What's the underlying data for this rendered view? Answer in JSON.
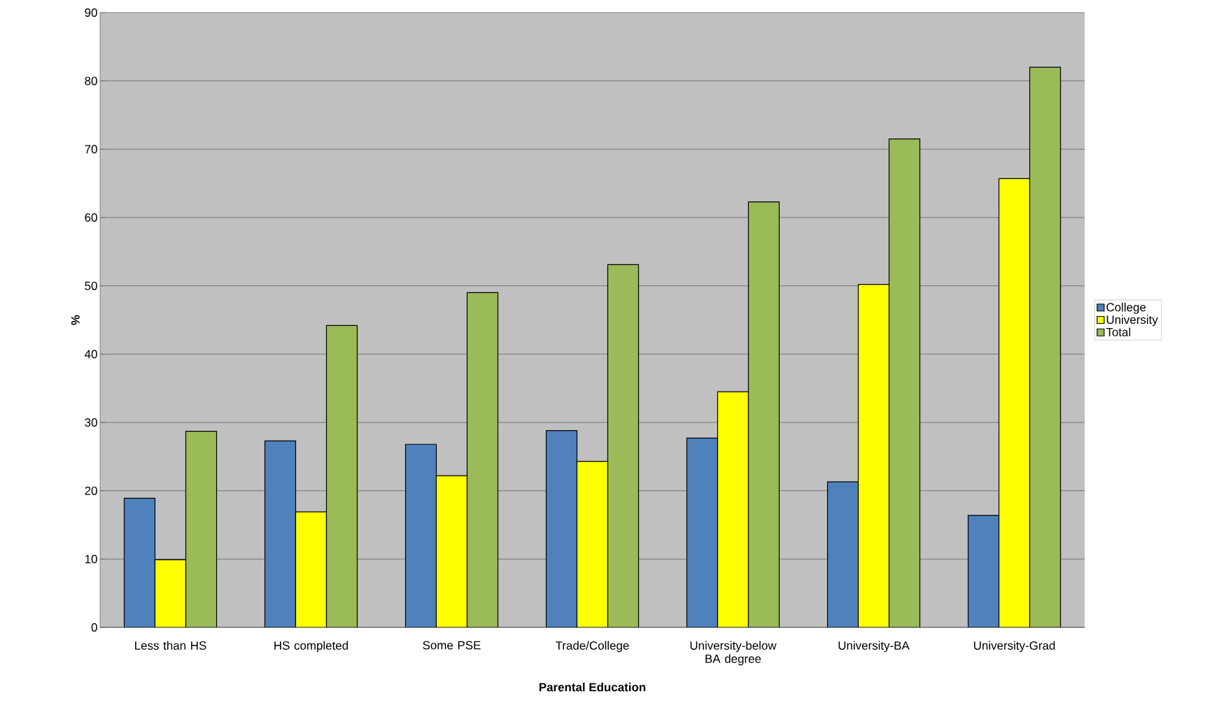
{
  "chart_data": {
    "type": "bar",
    "xlabel": "Parental Education",
    "ylabel": "%",
    "categories": [
      "Less than HS",
      "HS completed",
      "Some PSE",
      "Trade/College",
      "University-below BA degree",
      "University-BA",
      "University-Grad"
    ],
    "series": [
      {
        "name": "College",
        "color": "#4f81bd",
        "values": [
          18.9,
          27.3,
          26.8,
          28.8,
          27.7,
          21.3,
          16.4
        ]
      },
      {
        "name": "University",
        "color": "#ffff00",
        "values": [
          9.9,
          16.9,
          22.2,
          24.3,
          34.5,
          50.2,
          65.7
        ]
      },
      {
        "name": "Total",
        "color": "#9bbb59",
        "values": [
          28.7,
          44.2,
          49.0,
          53.1,
          62.3,
          71.5,
          82.0
        ]
      }
    ],
    "ylim": [
      0,
      90
    ],
    "yticks": [
      0,
      10,
      20,
      30,
      40,
      50,
      60,
      70,
      80,
      90
    ],
    "grid": "y",
    "legend": "right"
  }
}
